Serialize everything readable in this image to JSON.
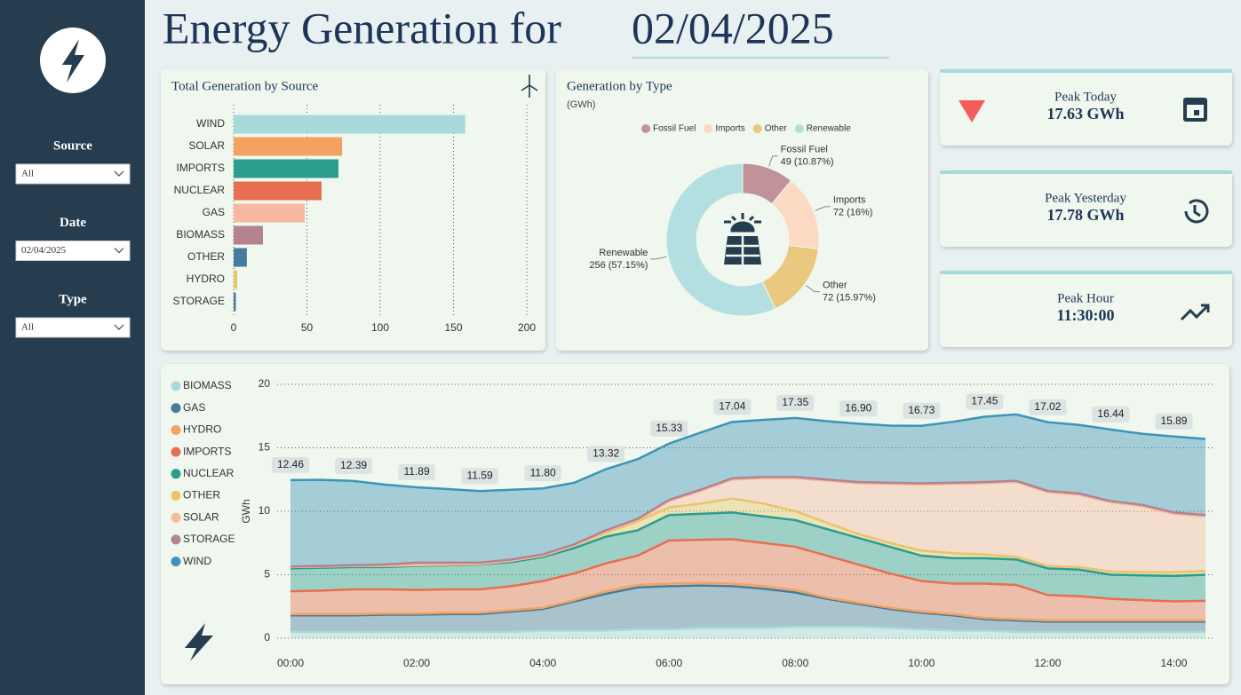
{
  "header": {
    "title": "Energy Generation for",
    "date": "02/04/2025"
  },
  "filters": [
    {
      "label": "Source",
      "value": "All"
    },
    {
      "label": "Date",
      "value": "02/04/2025"
    },
    {
      "label": "Type",
      "value": "All"
    }
  ],
  "kpis": [
    {
      "label": "Peak Today",
      "value": "17.63 GWh"
    },
    {
      "label": "Peak Yesterday",
      "value": "17.78 GWh"
    },
    {
      "label": "Peak Hour",
      "value": "11:30:00"
    }
  ],
  "chart_data": [
    {
      "type": "bar",
      "title": "Total Generation by Source",
      "categories": [
        "WIND",
        "SOLAR",
        "IMPORTS",
        "NUCLEAR",
        "GAS",
        "BIOMASS",
        "OTHER",
        "HYDRO",
        "STORAGE"
      ],
      "values": [
        158,
        74,
        71.5,
        60,
        48.5,
        20,
        9,
        2.4,
        1.5
      ],
      "colors": [
        "#a8dadc",
        "#f4a261",
        "#2a9d8f",
        "#e76f51",
        "#f8b9a0",
        "#b5838d",
        "#457b9d",
        "#e9c46a",
        "#457b9d"
      ],
      "xlim": [
        0,
        200
      ],
      "xticks": [
        0,
        50,
        100,
        150,
        200
      ],
      "grid": true
    },
    {
      "type": "donut",
      "title": "Generation by Type",
      "subtitle": "(GWh)",
      "categories": [
        "Fossil Fuel",
        "Imports",
        "Other",
        "Renewable"
      ],
      "values": [
        49,
        72,
        72,
        256
      ],
      "value_labels": [
        "49 (10.87%)",
        "72 (16%)",
        "72 (15.97%)",
        "256 (57.15%)"
      ],
      "colors": [
        "#c0939b",
        "#fcd9c2",
        "#e9c97f",
        "#b3dfe0"
      ],
      "legend": "top"
    },
    {
      "type": "area",
      "stacked": true,
      "ylabel": "GWh",
      "grid": true,
      "legend": "left",
      "x": [
        0,
        0.5,
        1,
        1.5,
        2,
        2.5,
        3,
        3.5,
        4,
        4.5,
        5,
        5.5,
        6,
        6.5,
        7,
        7.5,
        8,
        8.5,
        9,
        9.5,
        10,
        10.5,
        11,
        11.5,
        12,
        12.5,
        13,
        13.5,
        14,
        14.5
      ],
      "xlim": [
        0,
        14.5
      ],
      "xticks": [
        {
          "value": 0,
          "label": "00:00"
        },
        {
          "value": 2,
          "label": "02:00"
        },
        {
          "value": 4,
          "label": "04:00"
        },
        {
          "value": 6,
          "label": "06:00"
        },
        {
          "value": 8,
          "label": "08:00"
        },
        {
          "value": 10,
          "label": "10:00"
        },
        {
          "value": 12,
          "label": "12:00"
        },
        {
          "value": 14,
          "label": "14:00"
        }
      ],
      "ylim": [
        0,
        20
      ],
      "yticks": [
        0,
        5,
        10,
        15,
        20
      ],
      "series": [
        {
          "name": "BIOMASS",
          "color": "#a8dadc",
          "values": [
            0.5,
            0.5,
            0.5,
            0.5,
            0.5,
            0.5,
            0.5,
            0.5,
            0.6,
            0.6,
            0.6,
            0.7,
            0.7,
            0.8,
            0.8,
            0.8,
            0.9,
            0.9,
            0.9,
            0.8,
            0.7,
            0.6,
            0.6,
            0.5,
            0.5,
            0.5,
            0.5,
            0.5,
            0.5,
            0.5
          ]
        },
        {
          "name": "GAS",
          "color": "#457b9d",
          "values": [
            1.3,
            1.3,
            1.3,
            1.35,
            1.35,
            1.4,
            1.4,
            1.6,
            1.7,
            2.3,
            2.9,
            3.3,
            3.4,
            3.35,
            3.3,
            3.1,
            2.7,
            2.2,
            1.8,
            1.5,
            1.3,
            1.2,
            0.9,
            0.9,
            0.8,
            0.8,
            0.8,
            0.8,
            0.8,
            0.8
          ]
        },
        {
          "name": "HYDRO",
          "color": "#f4a261",
          "values": [
            0.1,
            0.1,
            0.1,
            0.1,
            0.1,
            0.1,
            0.1,
            0.1,
            0.1,
            0.1,
            0.2,
            0.2,
            0.2,
            0.2,
            0.2,
            0.2,
            0.2,
            0.1,
            0.1,
            0.1,
            0.1,
            0.1,
            0.1,
            0.1,
            0.1,
            0.1,
            0.1,
            0.1,
            0.1,
            0.1
          ]
        },
        {
          "name": "IMPORTS",
          "color": "#e76f51",
          "values": [
            1.8,
            1.85,
            1.95,
            1.9,
            1.85,
            1.85,
            1.85,
            1.9,
            2.1,
            2.1,
            2.2,
            2.3,
            3.4,
            3.4,
            3.5,
            3.4,
            3.4,
            3.3,
            3.0,
            2.7,
            2.4,
            2.4,
            2.7,
            2.7,
            2.0,
            1.9,
            1.7,
            1.6,
            1.5,
            1.55
          ]
        },
        {
          "name": "NUCLEAR",
          "color": "#2a9d8f",
          "values": [
            1.8,
            1.8,
            1.75,
            1.75,
            1.9,
            1.9,
            1.95,
            1.9,
            1.9,
            2.0,
            2.1,
            2.0,
            2.0,
            2.05,
            2.1,
            2.1,
            2.1,
            2.1,
            2.1,
            2.1,
            2.0,
            2.0,
            2.0,
            2.0,
            2.1,
            2.1,
            1.9,
            1.95,
            2.0,
            2.05
          ]
        },
        {
          "name": "OTHER",
          "color": "#e9c46a",
          "values": [
            0.1,
            0.1,
            0.1,
            0.1,
            0.05,
            0.05,
            0.05,
            0.1,
            0.1,
            0.2,
            0.3,
            0.7,
            0.6,
            0.8,
            1.1,
            1.0,
            0.7,
            0.5,
            0.3,
            0.3,
            0.4,
            0.4,
            0.3,
            0.2,
            0.2,
            0.2,
            0.25,
            0.25,
            0.3,
            0.3
          ]
        },
        {
          "name": "SOLAR",
          "color": "#f8b9a0",
          "values": [
            0,
            0,
            0,
            0,
            0,
            0,
            0,
            0,
            0,
            0,
            0.1,
            0.1,
            0.5,
            1.0,
            1.5,
            2.0,
            2.6,
            3.3,
            4.0,
            4.65,
            5.2,
            5.45,
            5.6,
            5.9,
            5.8,
            5.7,
            5.45,
            5.2,
            4.6,
            4.3
          ]
        },
        {
          "name": "STORAGE",
          "color": "#b5838d",
          "values": [
            0.05,
            0.05,
            0.05,
            0.1,
            0.2,
            0.15,
            0.1,
            0.1,
            0.1,
            0.1,
            0.1,
            0.1,
            0.1,
            0.1,
            0.1,
            0.1,
            0.1,
            0.1,
            0.1,
            0.1,
            0.1,
            0.1,
            0.1,
            0.1,
            0.1,
            0.1,
            0.1,
            0.1,
            0.1,
            0.1
          ]
        },
        {
          "name": "WIND",
          "color": "#3d94b8",
          "values": [
            6.81,
            6.77,
            6.64,
            6.3,
            5.94,
            5.8,
            5.64,
            5.5,
            5.2,
            4.85,
            4.82,
            4.7,
            4.43,
            4.5,
            4.44,
            4.5,
            4.65,
            4.6,
            4.6,
            4.5,
            4.53,
            4.8,
            5.15,
            5.23,
            5.42,
            5.4,
            5.64,
            5.6,
            5.99,
            6.0
          ]
        }
      ],
      "total_labels": [
        "12.46",
        null,
        "12.39",
        null,
        "11.89",
        null,
        "11.59",
        null,
        "11.80",
        null,
        "13.32",
        null,
        "15.33",
        null,
        "17.04",
        null,
        "17.35",
        null,
        "16.90",
        null,
        "16.73",
        null,
        "17.45",
        null,
        "17.02",
        null,
        "16.44",
        null,
        "15.89",
        null
      ]
    }
  ]
}
